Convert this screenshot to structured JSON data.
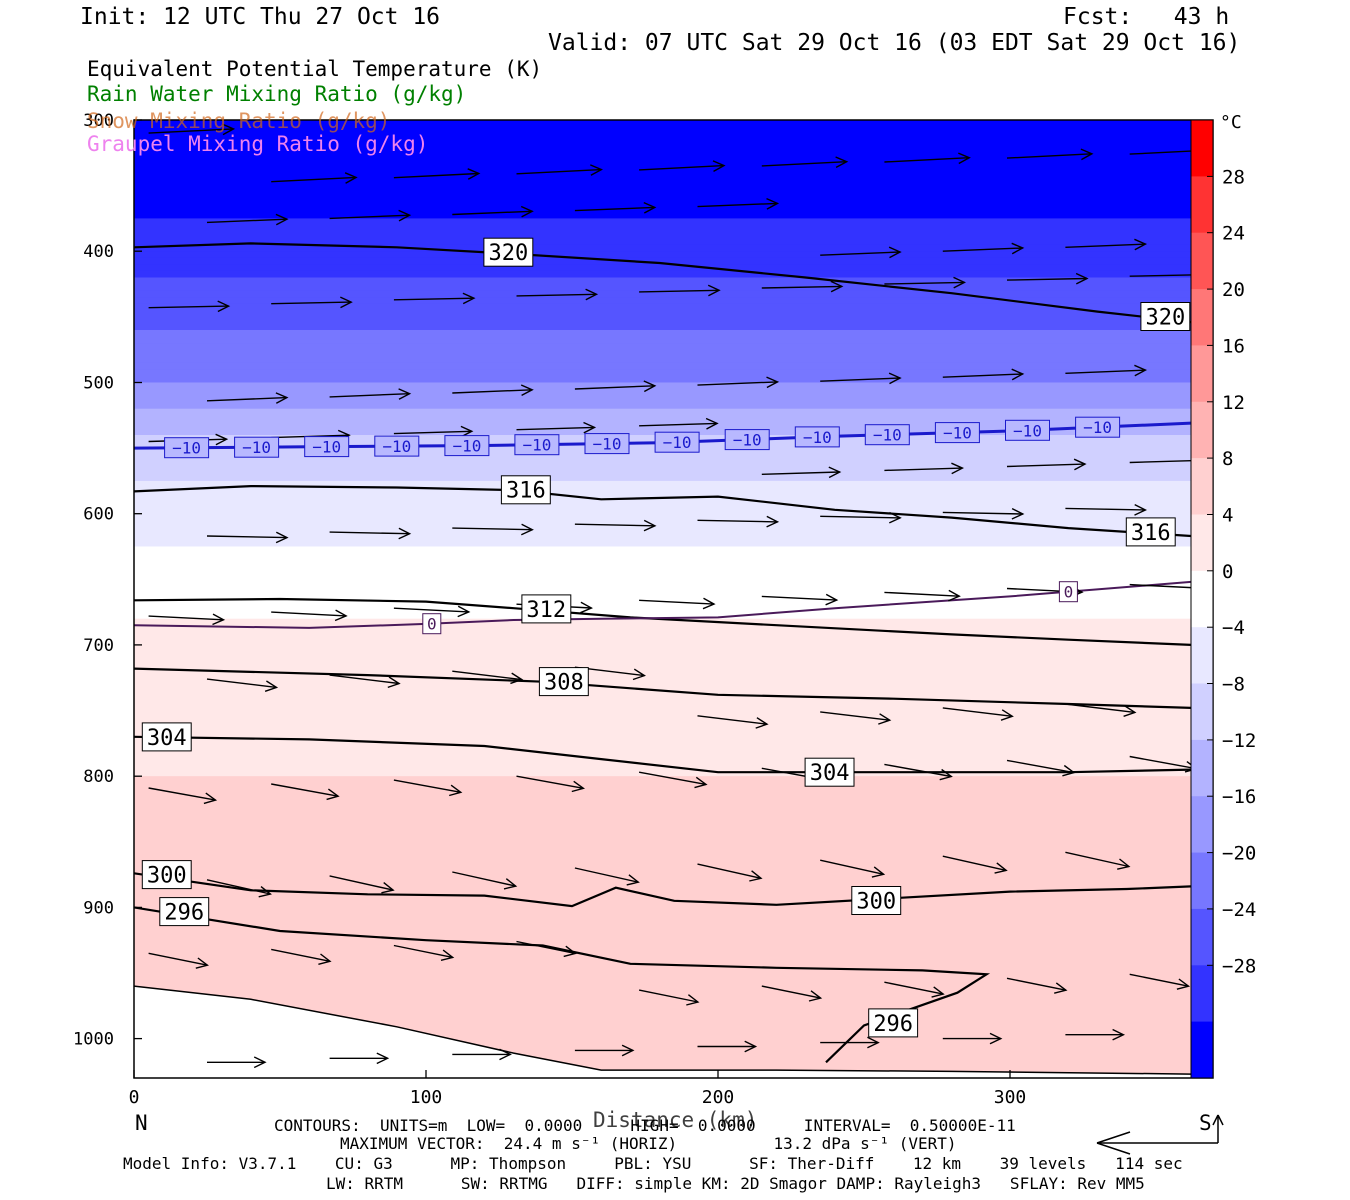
{
  "header": {
    "init": "Init: 12 UTC Thu 27 Oct 16",
    "fcst": "Fcst:   43 h",
    "valid": "Valid: 07 UTC Sat 29 Oct 16 (03 EDT Sat 29 Oct 16)"
  },
  "legend": {
    "line1": "Equivalent Potential Temperature (K)",
    "line2": "Rain Water Mixing Ratio (g/kg)",
    "line3": "Snow Mixing Ratio (g/kg)",
    "line4": "Graupel Mixing Ratio (g/kg)",
    "colors": {
      "theta_e": "#000000",
      "rain": "#008000",
      "snow": "#d2691e",
      "graupel": "#ee82ee",
      "isotherm": "#1a1acc",
      "freezing": "#4a1a5a"
    }
  },
  "footer": {
    "dir_left": "N",
    "dir_right": "S",
    "contours": "CONTOURS:  UNITS=m  LOW=  0.0000     HIGH=  0.0000     INTERVAL=  0.50000E-11",
    "max_vector": "MAXIMUM VECTOR:  24.4 m s⁻¹ (HORIZ)          13.2 dPa s⁻¹ (VERT)",
    "model1": "Model Info: V3.7.1    CU: G3      MP: Thompson     PBL: YSU      SF: Ther-Diff    12 km    39 levels   114 sec",
    "model2": "LW: RRTM      SW: RRTMG   DIFF: simple KM: 2D Smagor DAMP: Rayleigh3   SFLAY: Rev MM5"
  },
  "colorbar": {
    "unit": "°C",
    "ticks": [
      "28",
      "24",
      "20",
      "16",
      "12",
      "8",
      "4",
      "0",
      "−4",
      "−8",
      "−12",
      "−16",
      "−20",
      "−24",
      "−28"
    ],
    "colors": [
      "#ff0000",
      "#ff3333",
      "#ff5555",
      "#ff7777",
      "#ff9898",
      "#ffb3b3",
      "#ffd0d0",
      "#ffe8e8",
      "#ffffff",
      "#e8e8ff",
      "#d0d0ff",
      "#b3b3ff",
      "#9898ff",
      "#7777ff",
      "#5555ff",
      "#3333ff",
      "#0000ff"
    ]
  },
  "chart_data": {
    "type": "contour",
    "xlabel": "Distance (km)",
    "ylabel": "",
    "xlim": [
      0,
      362
    ],
    "ylim": [
      1030,
      300
    ],
    "x_ticks": [
      "0",
      "100",
      "200",
      "300"
    ],
    "y_ticks": [
      "300",
      "400",
      "500",
      "600",
      "700",
      "800",
      "900",
      "1000"
    ],
    "theta_e_contours": [
      {
        "label": "320",
        "points": [
          [
            0,
            397
          ],
          [
            40,
            394
          ],
          [
            90,
            397
          ],
          [
            130,
            402
          ],
          [
            180,
            409
          ],
          [
            230,
            420
          ],
          [
            280,
            432
          ],
          [
            330,
            446
          ],
          [
            362,
            454
          ]
        ]
      },
      {
        "label": "316",
        "points": [
          [
            0,
            583
          ],
          [
            40,
            579
          ],
          [
            90,
            580
          ],
          [
            130,
            582
          ],
          [
            160,
            589
          ],
          [
            200,
            587
          ],
          [
            240,
            597
          ],
          [
            280,
            603
          ],
          [
            320,
            611
          ],
          [
            362,
            617
          ]
        ]
      },
      {
        "label": "312",
        "points": [
          [
            0,
            666
          ],
          [
            50,
            665
          ],
          [
            100,
            667
          ],
          [
            130,
            672
          ],
          [
            170,
            679
          ],
          [
            220,
            685
          ],
          [
            280,
            692
          ],
          [
            320,
            696
          ],
          [
            362,
            700
          ]
        ]
      },
      {
        "label": "308",
        "points": [
          [
            0,
            718
          ],
          [
            80,
            723
          ],
          [
            140,
            728
          ],
          [
            200,
            738
          ],
          [
            260,
            741
          ],
          [
            320,
            745
          ],
          [
            362,
            748
          ]
        ]
      },
      {
        "label": "304",
        "points": [
          [
            0,
            770
          ],
          [
            60,
            772
          ],
          [
            120,
            777
          ],
          [
            160,
            787
          ],
          [
            200,
            797
          ],
          [
            260,
            797
          ],
          [
            320,
            797
          ],
          [
            362,
            795
          ]
        ]
      },
      {
        "label": "300",
        "points": [
          [
            0,
            874
          ],
          [
            40,
            887
          ],
          [
            80,
            890
          ],
          [
            120,
            891
          ],
          [
            150,
            899
          ],
          [
            165,
            885
          ],
          [
            185,
            895
          ],
          [
            220,
            898
          ],
          [
            260,
            893
          ],
          [
            300,
            888
          ],
          [
            340,
            886
          ],
          [
            362,
            884
          ]
        ]
      },
      {
        "label": "296",
        "points": [
          [
            0,
            900
          ],
          [
            50,
            918
          ],
          [
            100,
            925
          ],
          [
            140,
            929
          ],
          [
            170,
            943
          ],
          [
            220,
            946
          ],
          [
            270,
            948
          ],
          [
            292,
            951
          ],
          [
            282,
            965
          ],
          [
            250,
            990
          ],
          [
            237,
            1018
          ]
        ]
      }
    ],
    "isotherms": [
      {
        "label": "-10",
        "points": [
          [
            0,
            550
          ],
          [
            60,
            549
          ],
          [
            120,
            548
          ],
          [
            180,
            546
          ],
          [
            240,
            541
          ],
          [
            300,
            537
          ],
          [
            362,
            531
          ]
        ]
      },
      {
        "label": "0",
        "points": [
          [
            0,
            685
          ],
          [
            60,
            687
          ],
          [
            100,
            684
          ],
          [
            130,
            681
          ],
          [
            160,
            680
          ],
          [
            200,
            679
          ],
          [
            240,
            672
          ],
          [
            300,
            663
          ],
          [
            362,
            652
          ]
        ]
      }
    ],
    "terrain": [
      [
        0,
        960
      ],
      [
        40,
        970
      ],
      [
        90,
        991
      ],
      [
        130,
        1011
      ],
      [
        160,
        1024
      ],
      [
        220,
        1024
      ],
      [
        280,
        1025
      ],
      [
        362,
        1027
      ]
    ],
    "temperature_levels_c": [
      {
        "p": 300,
        "t": -38
      },
      {
        "p": 400,
        "t": -30
      },
      {
        "p": 500,
        "t": -20
      },
      {
        "p": 550,
        "t": -10
      },
      {
        "p": 600,
        "t": -6
      },
      {
        "p": 650,
        "t": -2
      },
      {
        "p": 680,
        "t": 0
      },
      {
        "p": 720,
        "t": 2
      },
      {
        "p": 800,
        "t": 4
      },
      {
        "p": 900,
        "t": 6
      },
      {
        "p": 1000,
        "t": 8
      }
    ]
  }
}
